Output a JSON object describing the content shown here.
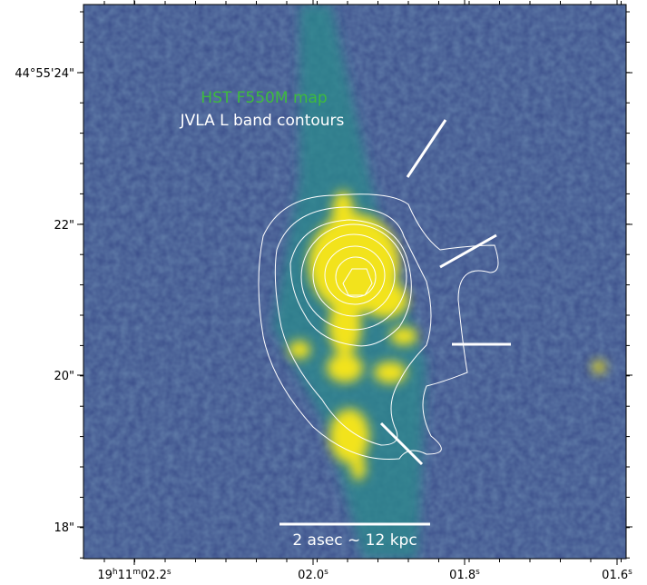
{
  "image": {
    "y_tick_labels": [
      "44°55'24\"",
      "22\"",
      "20\"",
      "18\""
    ],
    "x_tick_labels": [
      [
        "19",
        "h",
        "11",
        "m",
        "02.2",
        "s"
      ],
      [
        "02.0",
        "s"
      ],
      [
        "01.8",
        "s"
      ],
      [
        "01.6",
        "s"
      ]
    ],
    "annotations": [
      "HST F550M map",
      "JVLA L band contours"
    ],
    "scale_bar_label": "2 asec ~ 12 kpc"
  }
}
